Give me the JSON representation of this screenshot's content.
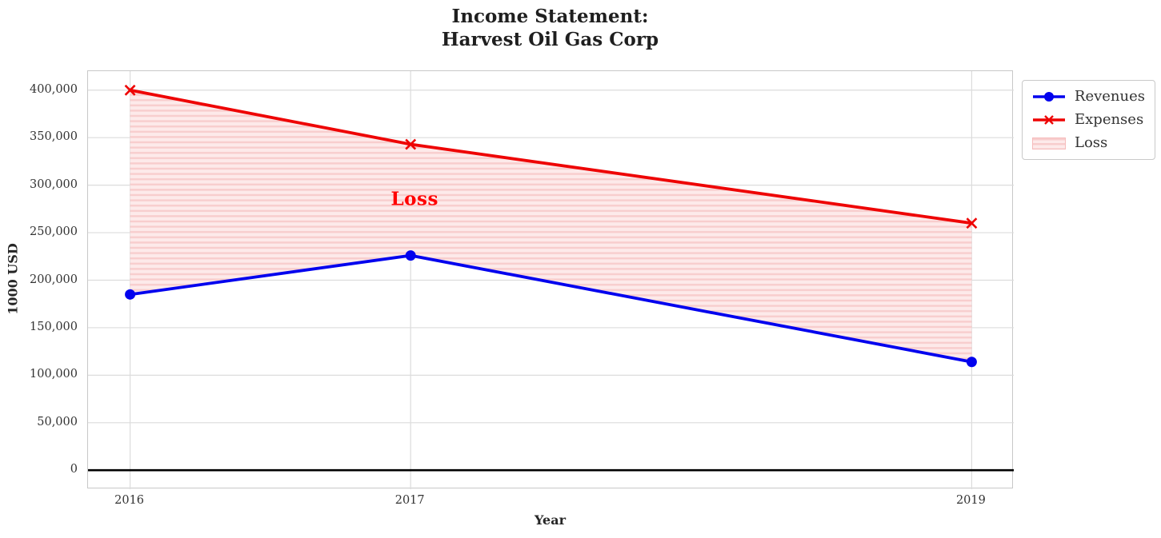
{
  "chart_data": {
    "type": "line",
    "title": "Income Statement:\nHarvest Oil Gas Corp",
    "xlabel": "Year",
    "ylabel": "1000 USD",
    "x": [
      2016,
      2017,
      2019
    ],
    "series": [
      {
        "name": "Revenues",
        "values": [
          185000,
          226000,
          114000
        ],
        "color": "#0202ee",
        "marker": "circle",
        "line_width": 3.8
      },
      {
        "name": "Expenses",
        "values": [
          400000,
          343000,
          260000
        ],
        "color": "#ee0404",
        "marker": "x",
        "line_width": 3.8
      }
    ],
    "loss": {
      "legend_label": "Loss",
      "annotation": {
        "text": "Loss",
        "x": 2017,
        "y": 285000,
        "color": "#ff0000"
      },
      "fill_color": "#fdeaea",
      "hatch_color": "#f8cdcd"
    },
    "xlim": [
      2015.85,
      2019.15
    ],
    "ylim": [
      -20000,
      420000
    ],
    "xticks": {
      "values": [
        2016,
        2017,
        2019
      ],
      "labels": [
        "2016",
        "2017",
        "2019"
      ]
    },
    "yticks": {
      "values": [
        0,
        50000,
        100000,
        150000,
        200000,
        250000,
        300000,
        350000,
        400000
      ],
      "labels": [
        "0",
        "50,000",
        "100,000",
        "150,000",
        "200,000",
        "250,000",
        "300,000",
        "350,000",
        "400,000"
      ]
    },
    "zero_line_value": 0,
    "zero_line_color": "#000000",
    "grid": true,
    "grid_color": "#dcdcdc",
    "axes_border_color": "#c8c8c8",
    "legend_position": "upper-right-outside"
  }
}
